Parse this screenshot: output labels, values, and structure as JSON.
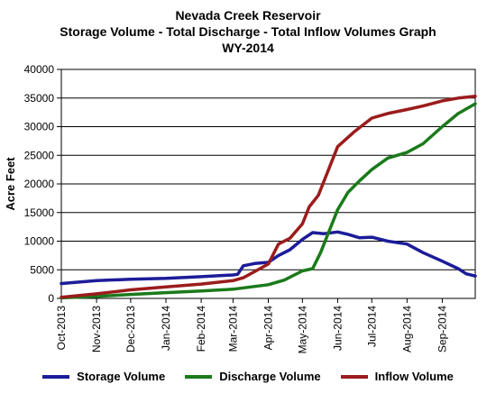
{
  "chart_data": {
    "type": "line",
    "title_lines": [
      "Nevada Creek Reservoir",
      "Storage Volume - Total Discharge - Total Inflow Volumes Graph",
      "WY-2014"
    ],
    "ylabel": "Acre Feet",
    "xlabel": "",
    "ylim": [
      0,
      40000
    ],
    "yticks": [
      "0",
      "5000",
      "10000",
      "15000",
      "20000",
      "25000",
      "30000",
      "35000",
      "40000"
    ],
    "ytick_values": [
      0,
      5000,
      10000,
      15000,
      20000,
      25000,
      30000,
      35000,
      40000
    ],
    "x_range": [
      "2013-10-01",
      "2014-09-30"
    ],
    "xticks": [
      "Oct-2013",
      "Nov-2013",
      "Dec-2013",
      "Jan-2014",
      "Feb-2014",
      "Mar-2014",
      "Apr-2014",
      "May-2014",
      "Jun-2014",
      "Jul-2014",
      "Aug-2014",
      "Sep-2014"
    ],
    "xtick_dates": [
      "2013-10-01",
      "2013-11-01",
      "2013-12-01",
      "2014-01-01",
      "2014-02-01",
      "2014-03-01",
      "2014-04-01",
      "2014-05-01",
      "2014-06-01",
      "2014-07-01",
      "2014-08-01",
      "2014-09-01"
    ],
    "grid": "horizontal",
    "legend_position": "bottom",
    "series": [
      {
        "name": "Storage Volume",
        "color": "#1c1c99",
        "points": [
          [
            "2013-10-01",
            2600
          ],
          [
            "2013-11-01",
            3100
          ],
          [
            "2013-12-01",
            3350
          ],
          [
            "2014-01-01",
            3500
          ],
          [
            "2014-02-01",
            3800
          ],
          [
            "2014-03-01",
            4100
          ],
          [
            "2014-03-05",
            4200
          ],
          [
            "2014-03-10",
            5700
          ],
          [
            "2014-03-20",
            6100
          ],
          [
            "2014-04-01",
            6300
          ],
          [
            "2014-04-10",
            7500
          ],
          [
            "2014-04-20",
            8500
          ],
          [
            "2014-05-01",
            10300
          ],
          [
            "2014-05-10",
            11500
          ],
          [
            "2014-05-20",
            11300
          ],
          [
            "2014-06-01",
            11600
          ],
          [
            "2014-06-10",
            11200
          ],
          [
            "2014-06-20",
            10600
          ],
          [
            "2014-07-01",
            10700
          ],
          [
            "2014-07-15",
            10000
          ],
          [
            "2014-08-01",
            9500
          ],
          [
            "2014-08-15",
            8000
          ],
          [
            "2014-09-01",
            6500
          ],
          [
            "2014-09-15",
            5200
          ],
          [
            "2014-09-22",
            4300
          ],
          [
            "2014-09-30",
            3900
          ]
        ]
      },
      {
        "name": "Discharge Volume",
        "color": "#1a7a1a",
        "points": [
          [
            "2013-10-01",
            100
          ],
          [
            "2013-11-01",
            350
          ],
          [
            "2013-12-01",
            700
          ],
          [
            "2014-01-01",
            1000
          ],
          [
            "2014-02-01",
            1300
          ],
          [
            "2014-03-01",
            1600
          ],
          [
            "2014-04-01",
            2400
          ],
          [
            "2014-04-15",
            3200
          ],
          [
            "2014-05-01",
            4800
          ],
          [
            "2014-05-10",
            5200
          ],
          [
            "2014-05-17",
            8000
          ],
          [
            "2014-05-24",
            11500
          ],
          [
            "2014-06-01",
            15500
          ],
          [
            "2014-06-10",
            18500
          ],
          [
            "2014-06-20",
            20500
          ],
          [
            "2014-07-01",
            22500
          ],
          [
            "2014-07-15",
            24500
          ],
          [
            "2014-08-01",
            25500
          ],
          [
            "2014-08-15",
            27000
          ],
          [
            "2014-09-01",
            30000
          ],
          [
            "2014-09-15",
            32300
          ],
          [
            "2014-09-30",
            34000
          ]
        ]
      },
      {
        "name": "Inflow Volume",
        "color": "#9b1c1c",
        "points": [
          [
            "2013-10-01",
            200
          ],
          [
            "2013-11-01",
            800
          ],
          [
            "2013-12-01",
            1500
          ],
          [
            "2014-01-01",
            2000
          ],
          [
            "2014-02-01",
            2500
          ],
          [
            "2014-03-01",
            3100
          ],
          [
            "2014-03-10",
            3600
          ],
          [
            "2014-04-01",
            6000
          ],
          [
            "2014-04-10",
            9500
          ],
          [
            "2014-04-20",
            10500
          ],
          [
            "2014-05-01",
            13000
          ],
          [
            "2014-05-07",
            16000
          ],
          [
            "2014-05-15",
            18000
          ],
          [
            "2014-05-22",
            21500
          ],
          [
            "2014-06-01",
            26500
          ],
          [
            "2014-06-15",
            29000
          ],
          [
            "2014-07-01",
            31500
          ],
          [
            "2014-07-15",
            32300
          ],
          [
            "2014-08-01",
            33000
          ],
          [
            "2014-08-15",
            33600
          ],
          [
            "2014-09-01",
            34500
          ],
          [
            "2014-09-15",
            35000
          ],
          [
            "2014-09-30",
            35300
          ]
        ]
      }
    ]
  }
}
